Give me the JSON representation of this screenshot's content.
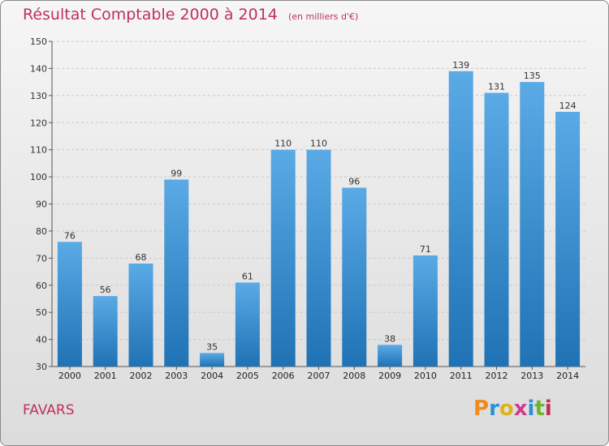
{
  "title": "Résultat Comptable 2000 à 2014",
  "subtitle": "(en milliers d'€)",
  "commune": "FAVARS",
  "logo_text": "Proxiti",
  "colors": {
    "title": "#c0305a",
    "bar_top": "#5aaae6",
    "bar_bottom": "#1f72b4",
    "logo_letters": [
      "#f08a1c",
      "#2d8fd6",
      "#e0b21a",
      "#d23a8c",
      "#2d8fd6",
      "#6bb52e",
      "#c0305a"
    ]
  },
  "chart_data": {
    "type": "bar",
    "categories": [
      "2000",
      "2001",
      "2002",
      "2003",
      "2004",
      "2005",
      "2006",
      "2007",
      "2008",
      "2009",
      "2010",
      "2011",
      "2012",
      "2013",
      "2014"
    ],
    "values": [
      76,
      56,
      68,
      99,
      35,
      61,
      110,
      110,
      96,
      38,
      71,
      139,
      131,
      135,
      124
    ],
    "ylim": [
      30,
      150
    ],
    "yticks": [
      30,
      40,
      50,
      60,
      70,
      80,
      90,
      100,
      110,
      120,
      130,
      140,
      150
    ],
    "grid": true
  }
}
